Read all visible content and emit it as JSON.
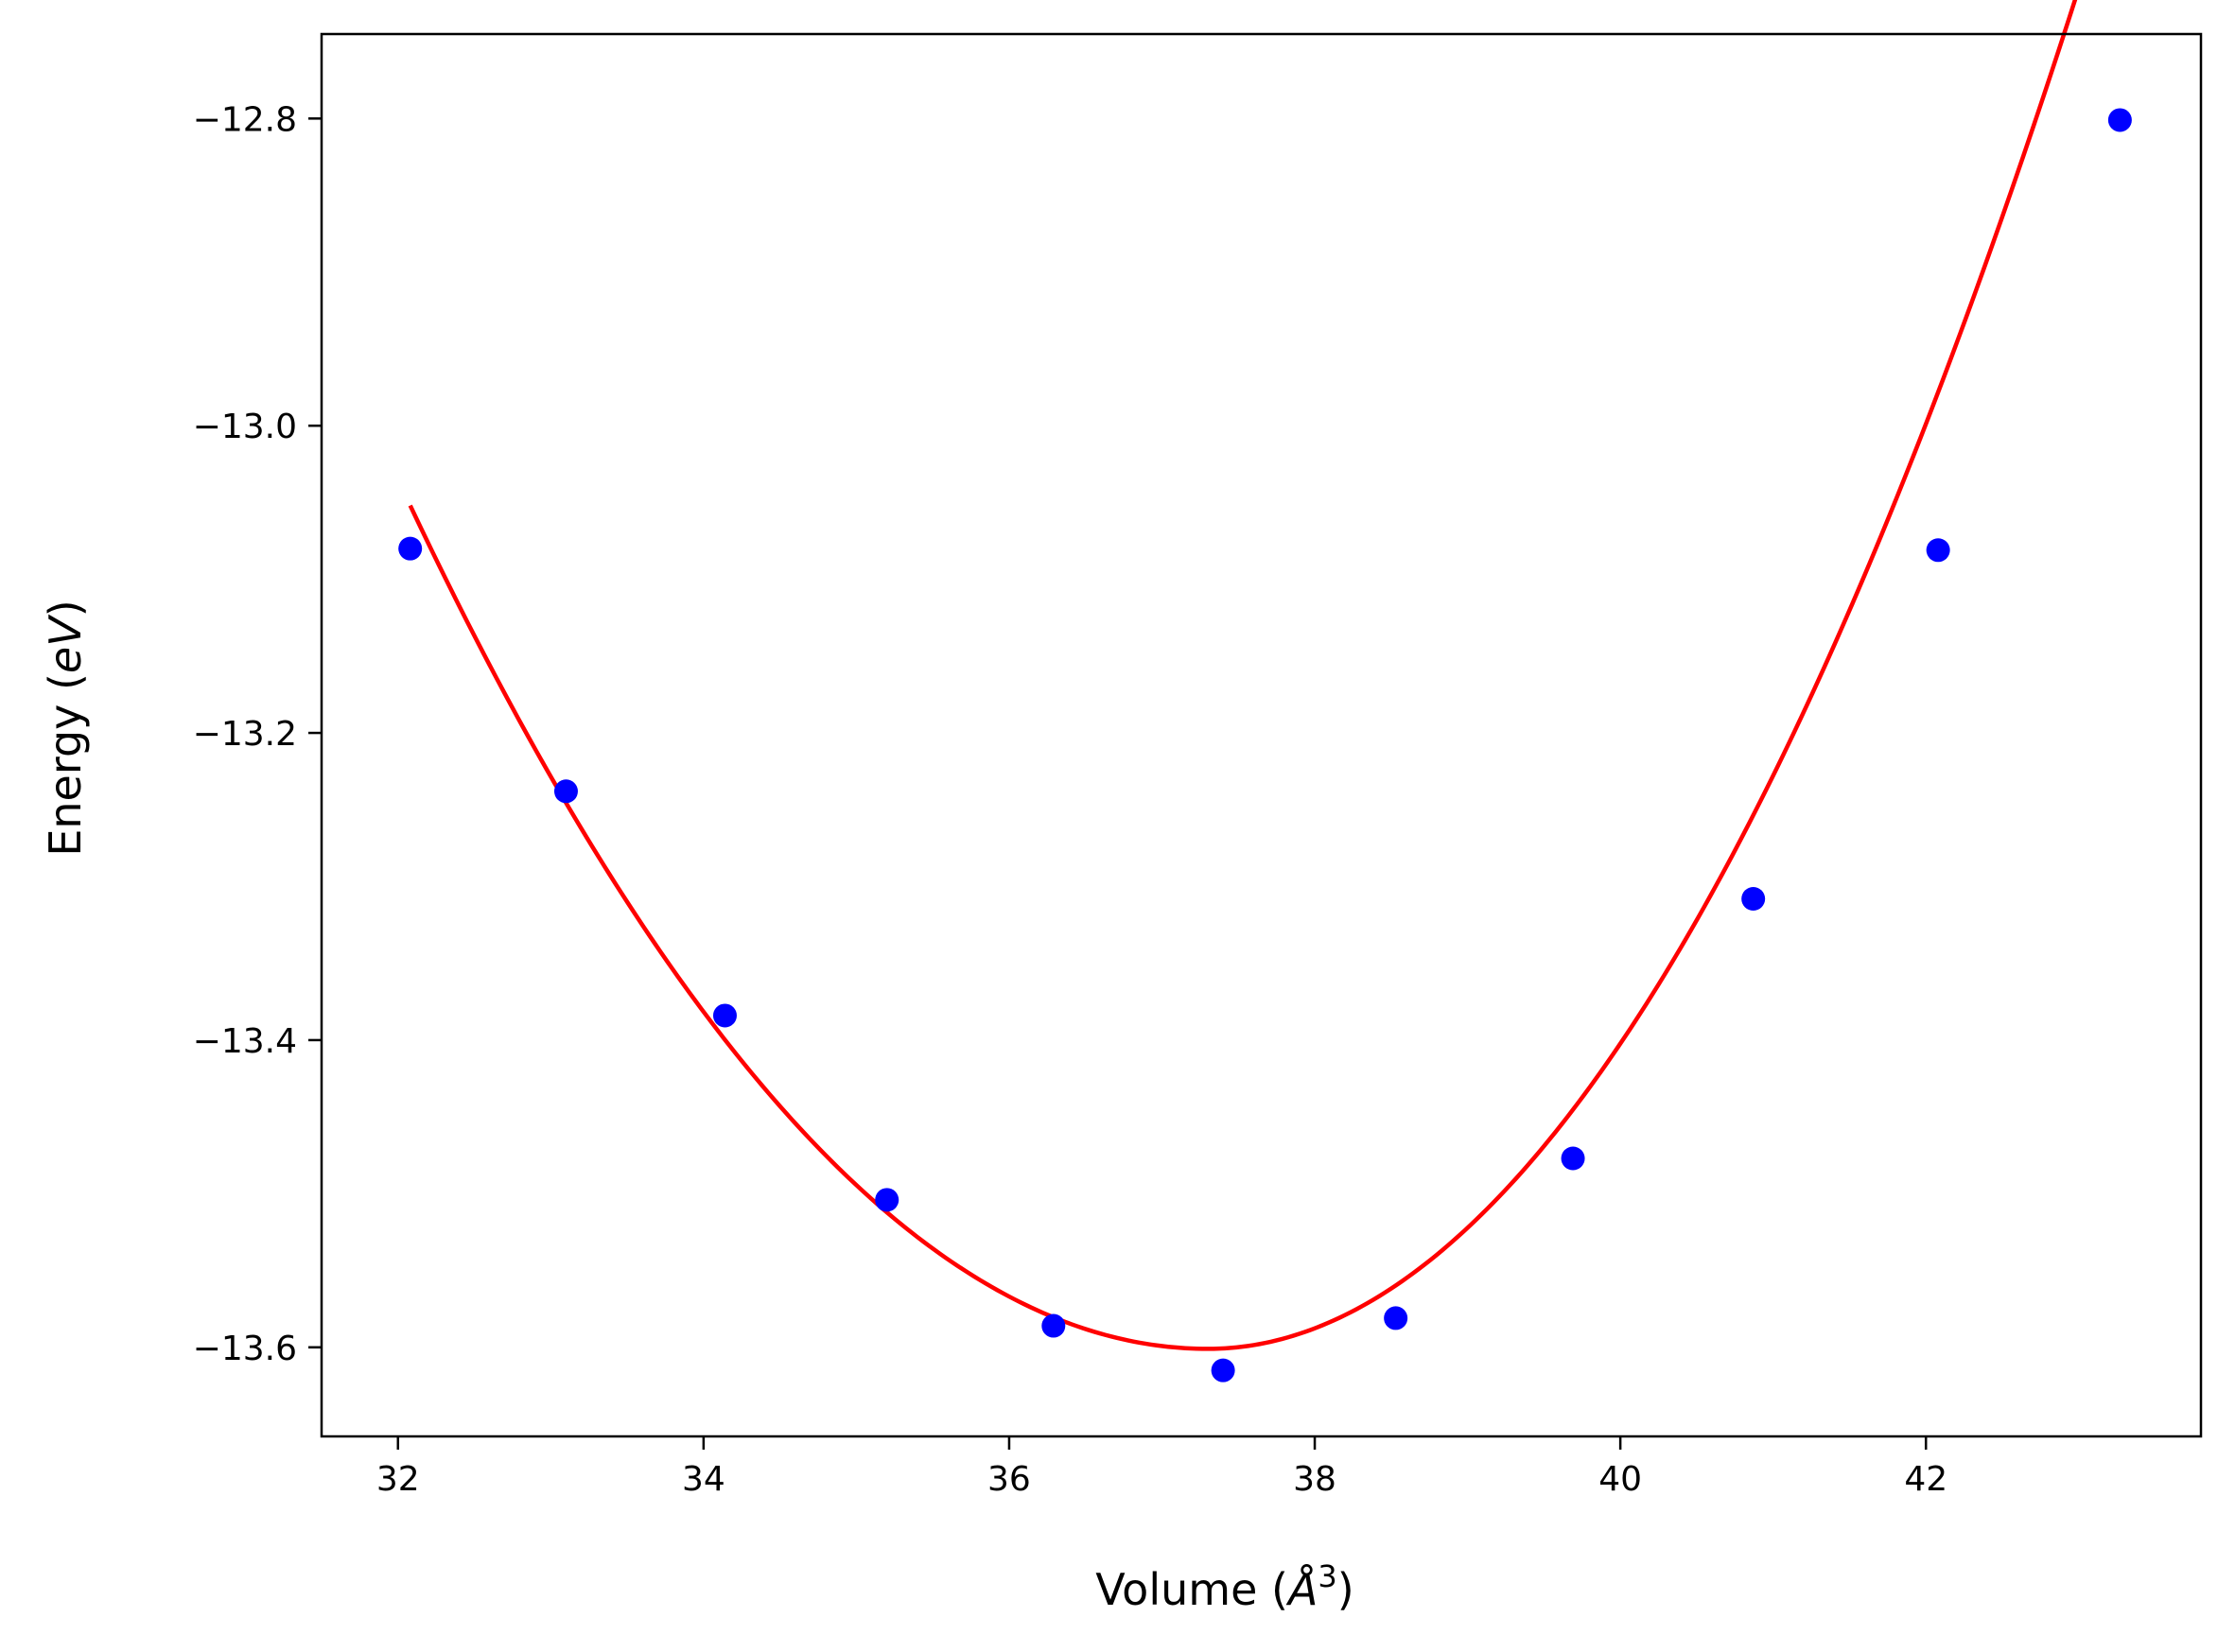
{
  "chart_data": {
    "type": "scatter",
    "xlabel": {
      "pre": "Volume (",
      "var": "Å",
      "sup": "3",
      "post": ")"
    },
    "ylabel": {
      "pre": "Energy (",
      "var": "eV",
      "post": ")"
    },
    "xlim": [
      31.5,
      43.8
    ],
    "ylim": [
      -13.658,
      -12.745
    ],
    "grid": false,
    "legend": "none",
    "x_ticks": [
      32,
      34,
      36,
      38,
      40,
      42
    ],
    "x_tick_labels": [
      "32",
      "34",
      "36",
      "38",
      "40",
      "42"
    ],
    "y_ticks": [
      -12.8,
      -13.0,
      -13.2,
      -13.4,
      -13.6
    ],
    "y_tick_labels": [
      "−12.8",
      "−13.0",
      "−13.2",
      "−13.4",
      "−13.6"
    ],
    "series": [
      {
        "type": "scatter",
        "color": "#0000ff",
        "x": [
          32.08,
          33.1,
          34.14,
          35.2,
          36.29,
          37.4,
          38.53,
          39.69,
          40.87,
          42.08,
          43.27
        ],
        "y": [
          -13.08,
          -13.238,
          -13.384,
          -13.504,
          -13.586,
          -13.615,
          -13.581,
          -13.477,
          -13.308,
          -13.081,
          -12.801
        ]
      },
      {
        "type": "line",
        "color": "#ff0000",
        "fit": {
          "model": "quadratic",
          "center": 37.3,
          "min": -13.601,
          "coef_left": 0.02015,
          "coef_right": 0.02726,
          "x_range": [
            32.08,
            43.27
          ]
        }
      }
    ]
  }
}
